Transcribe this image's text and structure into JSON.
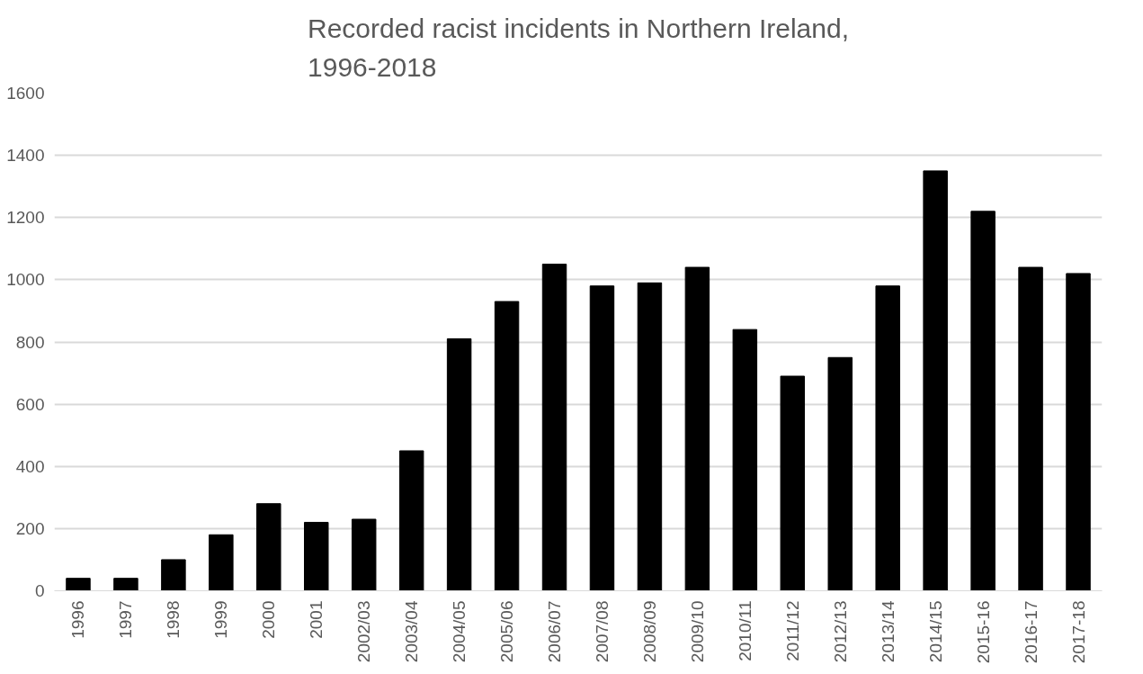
{
  "chart_data": {
    "type": "bar",
    "title": "Recorded racist incidents in Northern Ireland, 1996-2018",
    "categories": [
      "1996",
      "1997",
      "1998",
      "1999",
      "2000",
      "2001",
      "2002/03",
      "2003/04",
      "2004/05",
      "2005/06",
      "2006/07",
      "2007/08",
      "2008/09",
      "2009/10",
      "2010/11",
      "2011/12",
      "2012/13",
      "2013/14",
      "2014/15",
      "2015-16",
      "2016-17",
      "2017-18"
    ],
    "values": [
      40,
      40,
      100,
      180,
      280,
      220,
      230,
      450,
      810,
      930,
      1050,
      980,
      990,
      1040,
      840,
      690,
      750,
      980,
      1350,
      1220,
      1040,
      1020
    ],
    "color": "#000000",
    "ylim": [
      0,
      1600
    ],
    "yticks": [
      0,
      200,
      400,
      600,
      800,
      1000,
      1200,
      1400,
      1600
    ],
    "grid": "y"
  }
}
